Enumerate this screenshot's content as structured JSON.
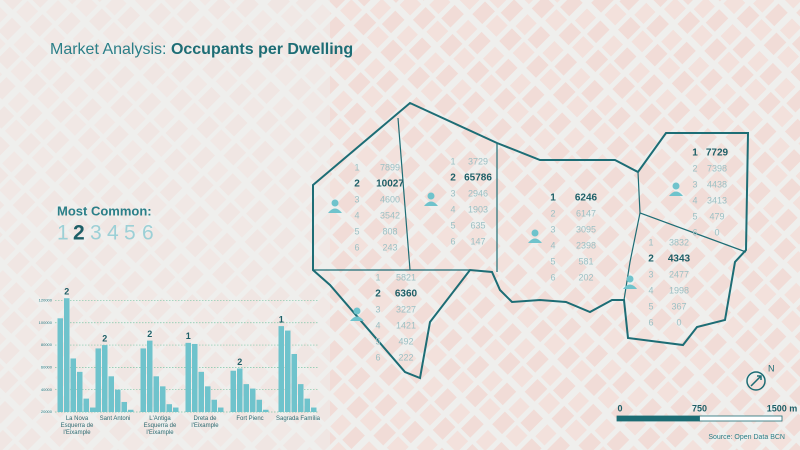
{
  "header": {
    "title_lead": "Market Analysis:",
    "title_main": "Occupants per Dwelling"
  },
  "most_common": {
    "label": "Most Common:",
    "options": [
      1,
      2,
      3,
      4,
      5,
      6
    ],
    "selected": 2
  },
  "districts": [
    {
      "highlight": 2,
      "rows": [
        [
          1,
          7899
        ],
        [
          2,
          10027
        ],
        [
          3,
          4600
        ],
        [
          4,
          3542
        ],
        [
          5,
          808
        ],
        [
          6,
          243
        ]
      ]
    },
    {
      "highlight": 2,
      "rows": [
        [
          1,
          3729
        ],
        [
          2,
          65786
        ],
        [
          3,
          2946
        ],
        [
          4,
          1903
        ],
        [
          5,
          635
        ],
        [
          6,
          147
        ]
      ]
    },
    {
      "highlight": 1,
      "rows": [
        [
          1,
          6246
        ],
        [
          2,
          6147
        ],
        [
          3,
          3095
        ],
        [
          4,
          2398
        ],
        [
          5,
          581
        ],
        [
          6,
          202
        ]
      ]
    },
    {
      "highlight": 1,
      "rows": [
        [
          1,
          7729
        ],
        [
          2,
          7398
        ],
        [
          3,
          4438
        ],
        [
          4,
          3413
        ],
        [
          5,
          479
        ],
        [
          6,
          0
        ]
      ]
    },
    {
      "highlight": 2,
      "rows": [
        [
          1,
          3832
        ],
        [
          2,
          4343
        ],
        [
          3,
          2477
        ],
        [
          4,
          1998
        ],
        [
          5,
          367
        ],
        [
          6,
          0
        ]
      ]
    },
    {
      "highlight": 2,
      "rows": [
        [
          1,
          5821
        ],
        [
          2,
          6360
        ],
        [
          3,
          3227
        ],
        [
          4,
          1421
        ],
        [
          5,
          492
        ],
        [
          6,
          222
        ]
      ]
    }
  ],
  "chart_data": {
    "type": "bar",
    "categories": [
      "La Nova Esquerra de l'Eixample",
      "Sant Antoni",
      "L'Antiga Esquerra de l'Eixample",
      "Dreta de l'Eixample",
      "Fort Pienc",
      "Sagrada Família"
    ],
    "group_labels": [
      2,
      2,
      2,
      1,
      2,
      1
    ],
    "series": [
      {
        "color": "#6fc3cc",
        "values": [
          104000,
          77000,
          77000,
          82000,
          57000,
          97000
        ]
      },
      {
        "color": "#6fc3cc",
        "values": [
          122000,
          80000,
          84000,
          81000,
          59000,
          93000
        ]
      },
      {
        "color": "#6fc3cc",
        "values": [
          68000,
          52000,
          52000,
          56000,
          45000,
          72000
        ]
      },
      {
        "color": "#6fc3cc",
        "values": [
          56000,
          40000,
          43000,
          43000,
          41000,
          45000
        ]
      },
      {
        "color": "#6fc3cc",
        "values": [
          32000,
          29000,
          27000,
          31000,
          31000,
          32000
        ]
      },
      {
        "color": "#6fc3cc",
        "values": [
          24000,
          22000,
          24000,
          24000,
          22000,
          24000
        ]
      }
    ],
    "ylim": [
      20000,
      124000
    ],
    "yticks": [
      20000,
      40000,
      60000,
      80000,
      100000,
      120000
    ],
    "grid": true
  },
  "scale": {
    "ticks": [
      0,
      750,
      {
        "value": 1500,
        "label": "1500 m"
      }
    ]
  },
  "compass": "N",
  "source": "Source: Open Data BCN"
}
